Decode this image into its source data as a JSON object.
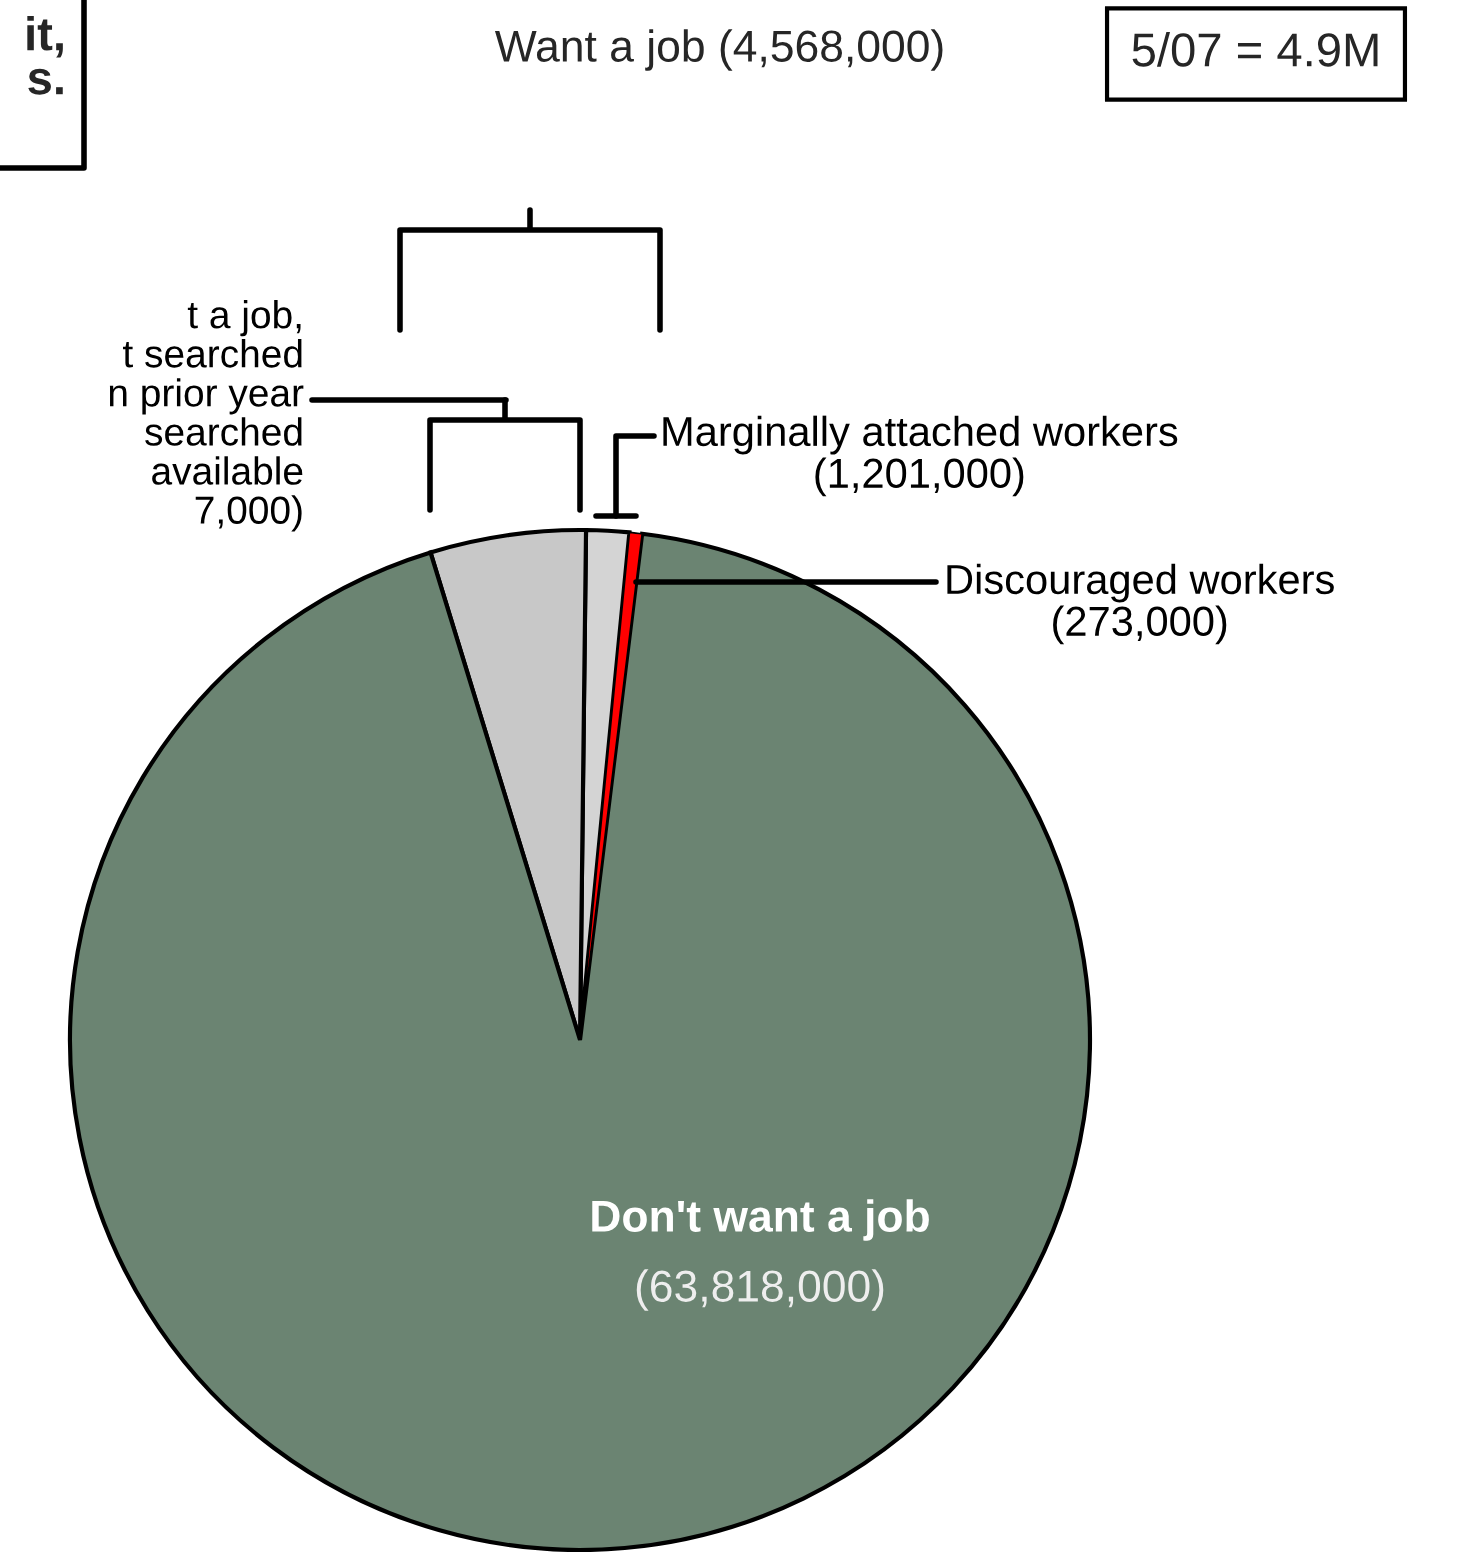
{
  "chart_data": {
    "type": "pie",
    "categories": [
      "Discouraged workers\n(273,000)",
      "Marginally attached workers\n(1,201,000)",
      "t a job,\nt searched\nn prior year\n searched\n available\n7,000)",
      "Don't want a job"
    ],
    "values": [
      273000,
      928000,
      3367000,
      63818000
    ],
    "value_labels": [
      null,
      null,
      null,
      "(63,818,000)"
    ],
    "colors": [
      "#ff0000",
      "#d4d4d4",
      "#c8c8c8",
      "#6b8472"
    ],
    "annotations": [
      "Want a job (4,568,000)",
      "5/07 = 4.9M",
      "it,\ns."
    ]
  }
}
